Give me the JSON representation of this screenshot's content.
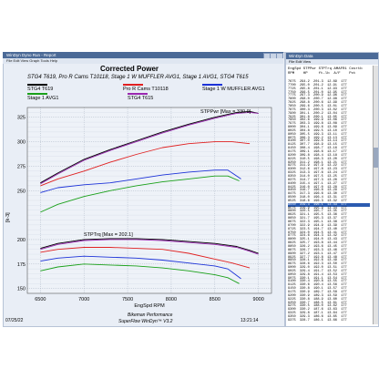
{
  "window": {
    "title": "WinDyn Dyno Run - Report",
    "menu": "File  Edit  View  Graph  Tools  Help"
  },
  "chart_data": {
    "type": "line",
    "title": "Corrected Power",
    "subtitle": "STG4 T619, Pro R Cams T10118, Stage 1 W MUFFLER AVG1, Stage 1 AVG1, STG4 T615",
    "xlabel": "EngSpd RPM",
    "ylabel": "[k-3]",
    "x_ticks": [
      6500,
      7000,
      7500,
      8000,
      8500,
      9000
    ],
    "y_ticks_power": [
      250,
      275,
      300,
      325
    ],
    "y_ticks_torque": [
      150,
      175,
      200
    ],
    "legend_placement": "top",
    "annotations": [
      {
        "text": "STPPwr [Max = 330.9]"
      },
      {
        "text": "STPTrq [Max = 202.1]"
      }
    ],
    "series": [
      {
        "name": "STG4 T619",
        "color": "#000000",
        "power": [
          [
            6500,
            258
          ],
          [
            6700,
            268
          ],
          [
            7000,
            282
          ],
          [
            7300,
            292
          ],
          [
            7600,
            301
          ],
          [
            7900,
            310
          ],
          [
            8200,
            318
          ],
          [
            8500,
            325
          ],
          [
            8750,
            330
          ],
          [
            8900,
            331
          ],
          [
            9000,
            329
          ]
        ],
        "torque": [
          [
            6500,
            191
          ],
          [
            6700,
            196
          ],
          [
            7000,
            200
          ],
          [
            7300,
            201
          ],
          [
            7600,
            201
          ],
          [
            7900,
            200
          ],
          [
            8200,
            198
          ],
          [
            8500,
            196
          ],
          [
            8750,
            193
          ],
          [
            8900,
            189
          ],
          [
            9000,
            186
          ]
        ]
      },
      {
        "name": "Pro R Cams T10118",
        "color": "#e02020",
        "power": [
          [
            6500,
            255
          ],
          [
            6700,
            262
          ],
          [
            7000,
            270
          ],
          [
            7300,
            279
          ],
          [
            7600,
            287
          ],
          [
            7900,
            294
          ],
          [
            8200,
            298
          ],
          [
            8500,
            300
          ],
          [
            8700,
            300
          ],
          [
            8900,
            298
          ]
        ],
        "torque": [
          [
            6500,
            187
          ],
          [
            6700,
            190
          ],
          [
            7000,
            192
          ],
          [
            7300,
            192
          ],
          [
            7600,
            191
          ],
          [
            7900,
            190
          ],
          [
            8200,
            186
          ],
          [
            8500,
            180
          ],
          [
            8700,
            176
          ],
          [
            8900,
            171
          ]
        ]
      },
      {
        "name": "Stage 1 W MUFFLER AVG1",
        "color": "#1c32d8",
        "power": [
          [
            6500,
            248
          ],
          [
            6700,
            253
          ],
          [
            7000,
            256
          ],
          [
            7300,
            258
          ],
          [
            7600,
            262
          ],
          [
            7900,
            266
          ],
          [
            8200,
            269
          ],
          [
            8500,
            271
          ],
          [
            8650,
            271
          ],
          [
            8800,
            262
          ]
        ],
        "torque": [
          [
            6500,
            178
          ],
          [
            6700,
            181
          ],
          [
            7000,
            183
          ],
          [
            7300,
            182
          ],
          [
            7600,
            181
          ],
          [
            7900,
            179
          ],
          [
            8200,
            176
          ],
          [
            8500,
            173
          ],
          [
            8650,
            170
          ],
          [
            8800,
            160
          ]
        ]
      },
      {
        "name": "Stage 1 AVG1",
        "color": "#19a019",
        "power": [
          [
            6500,
            228
          ],
          [
            6700,
            236
          ],
          [
            7000,
            244
          ],
          [
            7300,
            250
          ],
          [
            7600,
            255
          ],
          [
            7900,
            259
          ],
          [
            8200,
            262
          ],
          [
            8500,
            265
          ],
          [
            8650,
            265
          ],
          [
            8780,
            260
          ]
        ],
        "torque": [
          [
            6500,
            168
          ],
          [
            6700,
            172
          ],
          [
            7000,
            175
          ],
          [
            7300,
            174
          ],
          [
            7600,
            173
          ],
          [
            7900,
            171
          ],
          [
            8200,
            168
          ],
          [
            8500,
            164
          ],
          [
            8650,
            161
          ],
          [
            8780,
            155
          ]
        ]
      },
      {
        "name": "STG4 T615",
        "color": "#9a28b0",
        "power": [
          [
            6500,
            257
          ],
          [
            6700,
            267
          ],
          [
            7000,
            281
          ],
          [
            7300,
            291
          ],
          [
            7600,
            300
          ],
          [
            7900,
            309
          ],
          [
            8200,
            317
          ],
          [
            8500,
            324
          ],
          [
            8750,
            329
          ],
          [
            8900,
            330
          ],
          [
            9000,
            329
          ]
        ],
        "torque": [
          [
            6500,
            190
          ],
          [
            6700,
            195
          ],
          [
            7000,
            199
          ],
          [
            7300,
            200
          ],
          [
            7600,
            200
          ],
          [
            7900,
            199
          ],
          [
            8200,
            197
          ],
          [
            8500,
            195
          ],
          [
            8750,
            192
          ],
          [
            8900,
            188
          ],
          [
            9000,
            185
          ]
        ]
      }
    ]
  },
  "footer": {
    "date": "07/25/22",
    "time": "13:21:14",
    "company": "Bikeman Performance",
    "software": "SuperFlow WinDyn™ V3.2"
  },
  "table": {
    "title": "WinDyn Data",
    "menu": "File Edit View",
    "headers": "EngSpd STPPwr STPTrq AMAFR1 Cosrtb",
    "units": "RPM    HP     ft-lb  A/F    Pct",
    "rows": [
      "7675  294.2  201.3  12.89  177",
      "7700  295.0  201.2  12.91  177",
      "7725  295.8  201.1  12.93  177",
      "7750  296.5  201.0  12.95  177",
      "7775  297.3  200.9  12.96  177",
      "7800  298.0  200.7  12.98  177",
      "7825  298.8  200.6  12.99  177",
      "7850  299.6  200.5  13.01  177",
      "7875  300.3  200.3  13.02  177",
      "7900  301.1  200.2  13.04  177",
      "7925  301.8  200.1  13.05  177",
      "7950  302.6  199.9  13.06  177",
      "7975  303.3  199.8  13.08  177",
      "8000  304.1  199.6  13.09  177",
      "8025  304.8  199.5  13.10  177",
      "8050  305.5  199.3  13.11  177",
      "8075  306.3  199.2  13.13  177",
      "8100  307.0  199.0  13.14  177",
      "8125  307.7  198.9  13.15  177",
      "8150  308.4  198.7  13.16  177",
      "8175  309.1  198.6  13.17  177",
      "8200  309.8  198.4  13.18  177",
      "8225  310.5  198.3  13.20  177",
      "8250  311.2  198.1  13.21  177",
      "8275  311.9  197.9  13.22  177",
      "8300  312.6  197.8  13.23  177",
      "8325  313.3  197.6  13.24  177",
      "8350  314.0  197.5  13.25  177",
      "8375  314.7  197.3  13.26  177",
      "8400  315.4  197.1  13.27  177",
      "8425  316.0  197.0  13.28  177",
      "8450  316.7  196.8  13.29  177",
      "8475  317.3  196.6  13.30  177",
      "8500  318.0  196.4  13.31  177",
      "8525  318.6  196.3  13.32  177",
      "8550  319.3  196.1  13.33  177",
      "8575  319.9  195.9  13.34  177",
      "8600  320.5  195.7  13.35  177",
      "8625  321.1  195.5  13.36  177",
      "8650  321.7  195.3  13.37  177",
      "8675  322.3  195.1  13.38  177",
      "8700  322.9  194.9  13.39  177",
      "8725  323.5  194.7  13.40  177",
      "8750  324.0  194.5  13.41  177",
      "8775  324.6  194.3  13.42  177",
      "8800  325.1  194.0  13.43  177",
      "8825  325.7  193.8  13.44  177",
      "8850  326.2  193.6  13.45  177",
      "8875  326.7  193.3  13.46  177",
      "8900  327.2  193.1  13.47  177",
      "8925  327.7  192.8  13.48  177",
      "8950  328.1  192.6  13.49  177",
      "8975  328.6  192.3  13.50  177",
      "9000  329.0  192.0  13.51  177",
      "9025  329.4  191.7  13.52  177",
      "9050  329.8  191.4  13.53  177",
      "9075  330.1  191.1  13.54  177",
      "9100  330.4  190.8  13.55  177",
      "9125  330.6  190.4  13.56  177",
      "9150  330.8  190.1  13.57  177",
      "9175  330.9  189.7  13.58  177",
      "9200  330.9  189.3  13.59  177",
      "9225  330.8  188.9  13.60  177",
      "9250  330.7  188.5  13.61  177",
      "9275  330.5  188.0  13.62  177",
      "9300  330.2  187.6  13.63  177",
      "9325  329.8  187.1  13.64  177",
      "9350  329.3  186.6  13.65  177",
      "9375  328.7  186.1  13.66  177"
    ],
    "selected_index": 35
  }
}
